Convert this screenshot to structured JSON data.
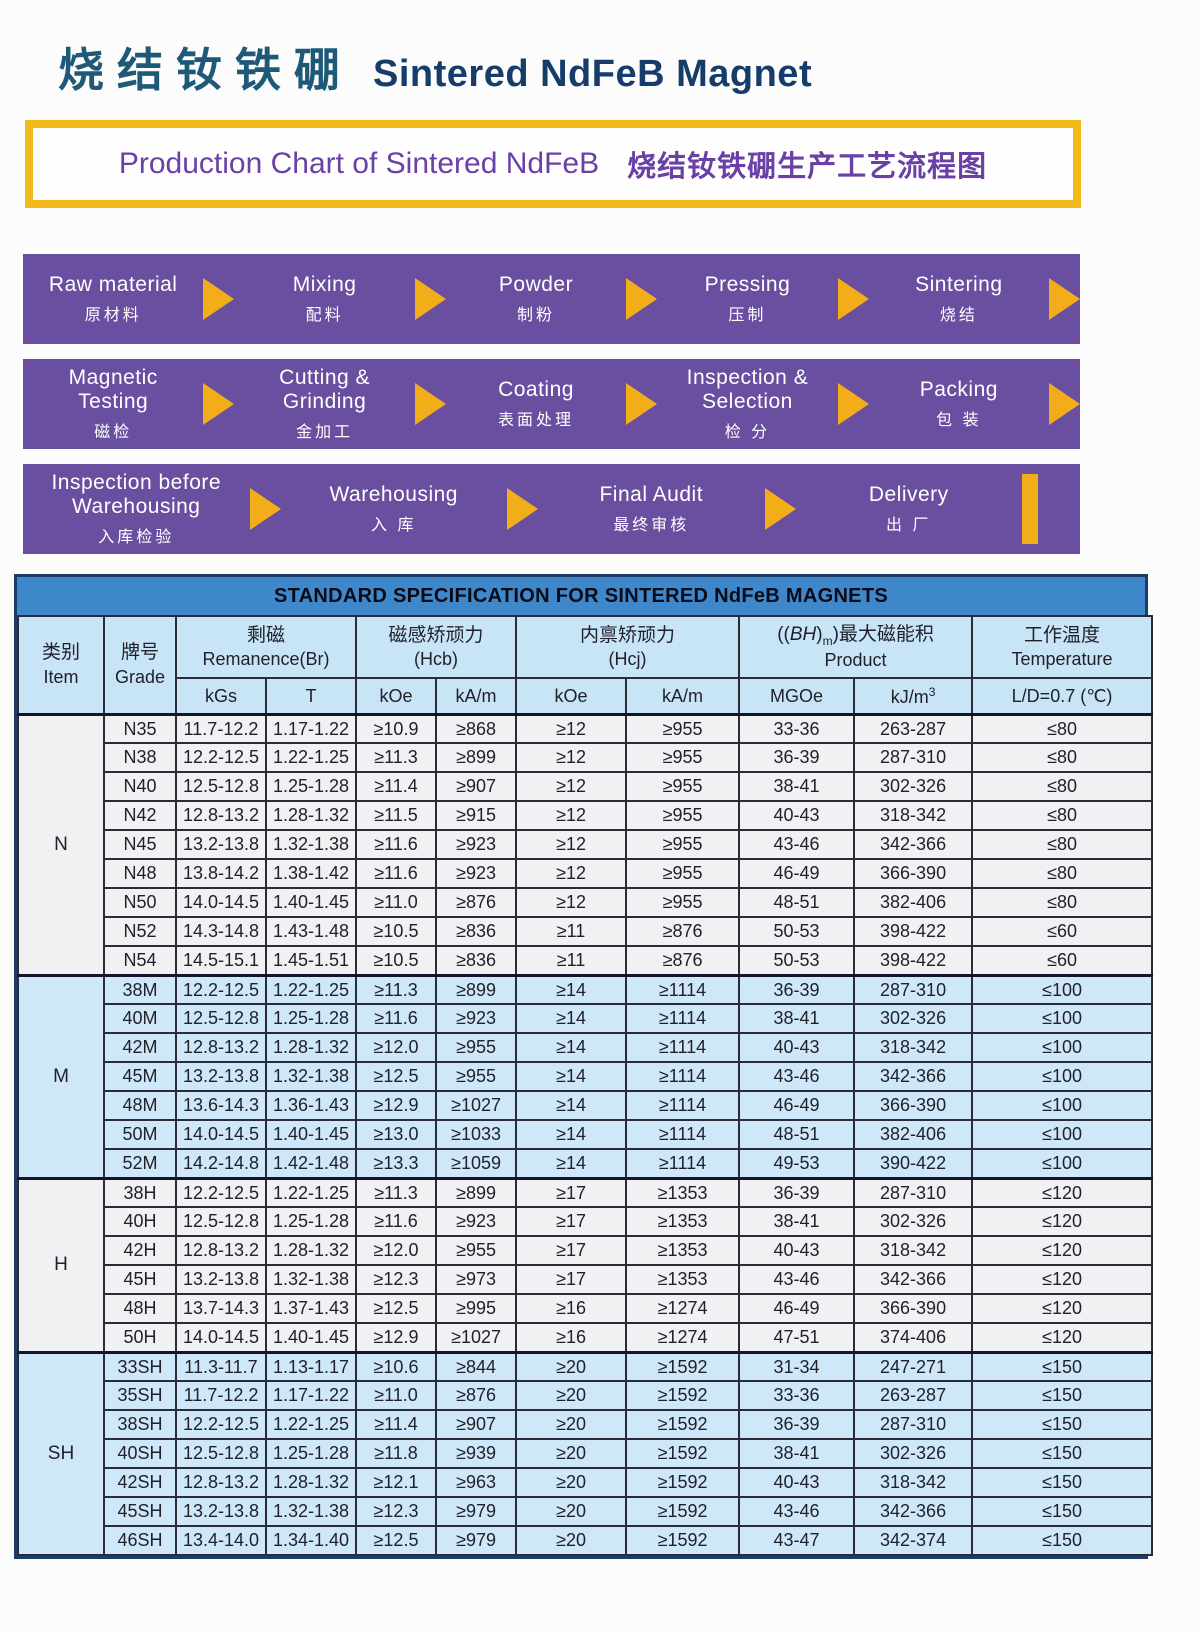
{
  "page_title": {
    "zh": "烧结钕铁硼",
    "en": "Sintered NdFeB Magnet"
  },
  "banner": {
    "en": "Production Chart of Sintered NdFeB",
    "zh": "烧结钕铁硼生产工艺流程图"
  },
  "flow": {
    "rows": [
      {
        "end": "arrow",
        "steps": [
          {
            "en": "Raw material",
            "zh": "原材料"
          },
          {
            "en": "Mixing",
            "zh": "配料"
          },
          {
            "en": "Powder",
            "zh": "制粉"
          },
          {
            "en": "Pressing",
            "zh": "压制"
          },
          {
            "en": "Sintering",
            "zh": "烧结"
          }
        ]
      },
      {
        "end": "arrow",
        "steps": [
          {
            "en": "Magnetic\nTesting",
            "zh": "磁检"
          },
          {
            "en": "Cutting &\nGrinding",
            "zh": "金加工"
          },
          {
            "en": "Coating",
            "zh": "表面处理"
          },
          {
            "en": "Inspection &\nSelection",
            "zh": "检 分"
          },
          {
            "en": "Packing",
            "zh": "包 装"
          }
        ]
      },
      {
        "end": "bar",
        "steps": [
          {
            "en": "Inspection before\nWarehousing",
            "zh": "入库检验"
          },
          {
            "en": "Warehousing",
            "zh": "入 库"
          },
          {
            "en": "Final Audit",
            "zh": "最终审核"
          },
          {
            "en": "Delivery",
            "zh": "出 厂"
          }
        ]
      }
    ]
  },
  "table": {
    "title": "STANDARD SPECIFICATION FOR SINTERED NdFeB MAGNETS",
    "columns": {
      "item": {
        "zh": "类别",
        "en": "Item"
      },
      "grade": {
        "zh": "牌号",
        "en": "Grade"
      },
      "remanence": {
        "zh": "剩磁",
        "en": "Remanence(Br)",
        "units": [
          "kGs",
          "T"
        ]
      },
      "hcb": {
        "zh": "磁感矫顽力",
        "en": "(Hcb)",
        "units": [
          "kOe",
          "kA/m"
        ]
      },
      "hcj": {
        "zh": "内禀矫顽力",
        "en": "(Hcj)",
        "units": [
          "kOe",
          "kA/m"
        ]
      },
      "product": {
        "zh_a": "((",
        "bh": "BH",
        "zh_b": ")",
        "sub_m": "m",
        "zh_c": ")最大磁能积",
        "en": "Product",
        "units": [
          "MGOe"
        ],
        "kjm_base": "kJ/m",
        "kjm_sup": "3"
      },
      "temperature": {
        "zh": "工作温度",
        "en": "Temperature",
        "unit": "L/D=0.7 (℃)"
      }
    },
    "groups": [
      {
        "label": "N",
        "tint": "white",
        "rows": [
          [
            "N35",
            "11.7-12.2",
            "1.17-1.22",
            "≥10.9",
            "≥868",
            "≥12",
            "≥955",
            "33-36",
            "263-287",
            "≤80"
          ],
          [
            "N38",
            "12.2-12.5",
            "1.22-1.25",
            "≥11.3",
            "≥899",
            "≥12",
            "≥955",
            "36-39",
            "287-310",
            "≤80"
          ],
          [
            "N40",
            "12.5-12.8",
            "1.25-1.28",
            "≥11.4",
            "≥907",
            "≥12",
            "≥955",
            "38-41",
            "302-326",
            "≤80"
          ],
          [
            "N42",
            "12.8-13.2",
            "1.28-1.32",
            "≥11.5",
            "≥915",
            "≥12",
            "≥955",
            "40-43",
            "318-342",
            "≤80"
          ],
          [
            "N45",
            "13.2-13.8",
            "1.32-1.38",
            "≥11.6",
            "≥923",
            "≥12",
            "≥955",
            "43-46",
            "342-366",
            "≤80"
          ],
          [
            "N48",
            "13.8-14.2",
            "1.38-1.42",
            "≥11.6",
            "≥923",
            "≥12",
            "≥955",
            "46-49",
            "366-390",
            "≤80"
          ],
          [
            "N50",
            "14.0-14.5",
            "1.40-1.45",
            "≥11.0",
            "≥876",
            "≥12",
            "≥955",
            "48-51",
            "382-406",
            "≤80"
          ],
          [
            "N52",
            "14.3-14.8",
            "1.43-1.48",
            "≥10.5",
            "≥836",
            "≥11",
            "≥876",
            "50-53",
            "398-422",
            "≤60"
          ],
          [
            "N54",
            "14.5-15.1",
            "1.45-1.51",
            "≥10.5",
            "≥836",
            "≥11",
            "≥876",
            "50-53",
            "398-422",
            "≤60"
          ]
        ]
      },
      {
        "label": "M",
        "tint": "blue",
        "rows": [
          [
            "38M",
            "12.2-12.5",
            "1.22-1.25",
            "≥11.3",
            "≥899",
            "≥14",
            "≥1114",
            "36-39",
            "287-310",
            "≤100"
          ],
          [
            "40M",
            "12.5-12.8",
            "1.25-1.28",
            "≥11.6",
            "≥923",
            "≥14",
            "≥1114",
            "38-41",
            "302-326",
            "≤100"
          ],
          [
            "42M",
            "12.8-13.2",
            "1.28-1.32",
            "≥12.0",
            "≥955",
            "≥14",
            "≥1114",
            "40-43",
            "318-342",
            "≤100"
          ],
          [
            "45M",
            "13.2-13.8",
            "1.32-1.38",
            "≥12.5",
            "≥955",
            "≥14",
            "≥1114",
            "43-46",
            "342-366",
            "≤100"
          ],
          [
            "48M",
            "13.6-14.3",
            "1.36-1.43",
            "≥12.9",
            "≥1027",
            "≥14",
            "≥1114",
            "46-49",
            "366-390",
            "≤100"
          ],
          [
            "50M",
            "14.0-14.5",
            "1.40-1.45",
            "≥13.0",
            "≥1033",
            "≥14",
            "≥1114",
            "48-51",
            "382-406",
            "≤100"
          ],
          [
            "52M",
            "14.2-14.8",
            "1.42-1.48",
            "≥13.3",
            "≥1059",
            "≥14",
            "≥1114",
            "49-53",
            "390-422",
            "≤100"
          ]
        ]
      },
      {
        "label": "H",
        "tint": "white",
        "rows": [
          [
            "38H",
            "12.2-12.5",
            "1.22-1.25",
            "≥11.3",
            "≥899",
            "≥17",
            "≥1353",
            "36-39",
            "287-310",
            "≤120"
          ],
          [
            "40H",
            "12.5-12.8",
            "1.25-1.28",
            "≥11.6",
            "≥923",
            "≥17",
            "≥1353",
            "38-41",
            "302-326",
            "≤120"
          ],
          [
            "42H",
            "12.8-13.2",
            "1.28-1.32",
            "≥12.0",
            "≥955",
            "≥17",
            "≥1353",
            "40-43",
            "318-342",
            "≤120"
          ],
          [
            "45H",
            "13.2-13.8",
            "1.32-1.38",
            "≥12.3",
            "≥973",
            "≥17",
            "≥1353",
            "43-46",
            "342-366",
            "≤120"
          ],
          [
            "48H",
            "13.7-14.3",
            "1.37-1.43",
            "≥12.5",
            "≥995",
            "≥16",
            "≥1274",
            "46-49",
            "366-390",
            "≤120"
          ],
          [
            "50H",
            "14.0-14.5",
            "1.40-1.45",
            "≥12.9",
            "≥1027",
            "≥16",
            "≥1274",
            "47-51",
            "374-406",
            "≤120"
          ]
        ]
      },
      {
        "label": "SH",
        "tint": "blue",
        "rows": [
          [
            "33SH",
            "11.3-11.7",
            "1.13-1.17",
            "≥10.6",
            "≥844",
            "≥20",
            "≥1592",
            "31-34",
            "247-271",
            "≤150"
          ],
          [
            "35SH",
            "11.7-12.2",
            "1.17-1.22",
            "≥11.0",
            "≥876",
            "≥20",
            "≥1592",
            "33-36",
            "263-287",
            "≤150"
          ],
          [
            "38SH",
            "12.2-12.5",
            "1.22-1.25",
            "≥11.4",
            "≥907",
            "≥20",
            "≥1592",
            "36-39",
            "287-310",
            "≤150"
          ],
          [
            "40SH",
            "12.5-12.8",
            "1.25-1.28",
            "≥11.8",
            "≥939",
            "≥20",
            "≥1592",
            "38-41",
            "302-326",
            "≤150"
          ],
          [
            "42SH",
            "12.8-13.2",
            "1.28-1.32",
            "≥12.1",
            "≥963",
            "≥20",
            "≥1592",
            "40-43",
            "318-342",
            "≤150"
          ],
          [
            "45SH",
            "13.2-13.8",
            "1.32-1.38",
            "≥12.3",
            "≥979",
            "≥20",
            "≥1592",
            "43-46",
            "342-366",
            "≤150"
          ],
          [
            "46SH",
            "13.4-14.0",
            "1.34-1.40",
            "≥12.5",
            "≥979",
            "≥20",
            "≥1592",
            "43-47",
            "342-374",
            "≤150"
          ]
        ]
      }
    ]
  },
  "colors": {
    "title_zh": "#1e5a78",
    "title_en": "#163d6a",
    "banner_border": "#f2ba18",
    "banner_text": "#6a3fa6",
    "flow_band": "#6a4fa1",
    "flow_arrow": "#f2ae18",
    "flow_text": "#ffffff",
    "table_title_bar": "#3e87ca",
    "header_bg": "#c8e4f7",
    "row_white": "#f0f1f3",
    "row_blue": "#cfe8f9",
    "table_border": "#1c3c6a"
  }
}
